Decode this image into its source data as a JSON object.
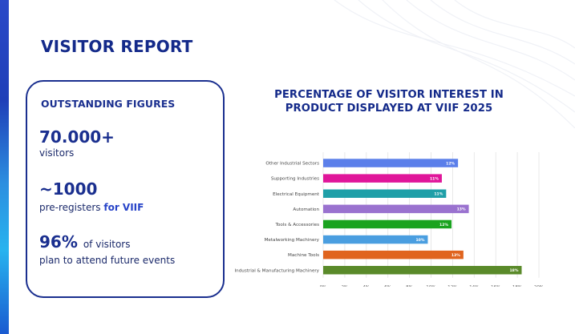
{
  "report": {
    "title": "VISITOR REPORT"
  },
  "figures": {
    "heading": "OUTSTANDING FIGURES",
    "items": [
      {
        "value": "70.000+",
        "caption": "visitors"
      },
      {
        "value": "~1000",
        "caption": "pre-registers",
        "caption_accent": "for VIIF"
      },
      {
        "value": "96%",
        "inline_caption": "of visitors",
        "caption": "plan to attend future events"
      }
    ]
  },
  "chart_data": {
    "type": "bar",
    "orientation": "horizontal",
    "title": "PERCENTAGE OF VISITOR INTEREST IN PRODUCT DISPLAYED AT VIIF 2025",
    "categories": [
      "Other Industrial Sectors",
      "Supporting Industries",
      "Electrical Equipment",
      "Automation",
      "Tools & Accessories",
      "Metalworking Machinery",
      "Machine Tools",
      "Industrial & Manufacturing Machinery"
    ],
    "values": [
      12.5,
      11,
      11.4,
      13.5,
      11.9,
      9.7,
      13,
      18.4
    ],
    "data_labels": [
      "12%",
      "11%",
      "11%",
      "13%",
      "12%",
      "10%",
      "13%",
      "18%"
    ],
    "colors": [
      "#5b7fea",
      "#e0169a",
      "#1f9fa8",
      "#9a72cf",
      "#1aa31f",
      "#4a9ee0",
      "#e0641e",
      "#5a8a2a"
    ],
    "xlim": [
      0,
      20
    ],
    "x_ticks": [
      "0%",
      "2%",
      "4%",
      "6%",
      "8%",
      "10%",
      "12%",
      "14%",
      "16%",
      "18%",
      "20%"
    ],
    "grid": true
  }
}
